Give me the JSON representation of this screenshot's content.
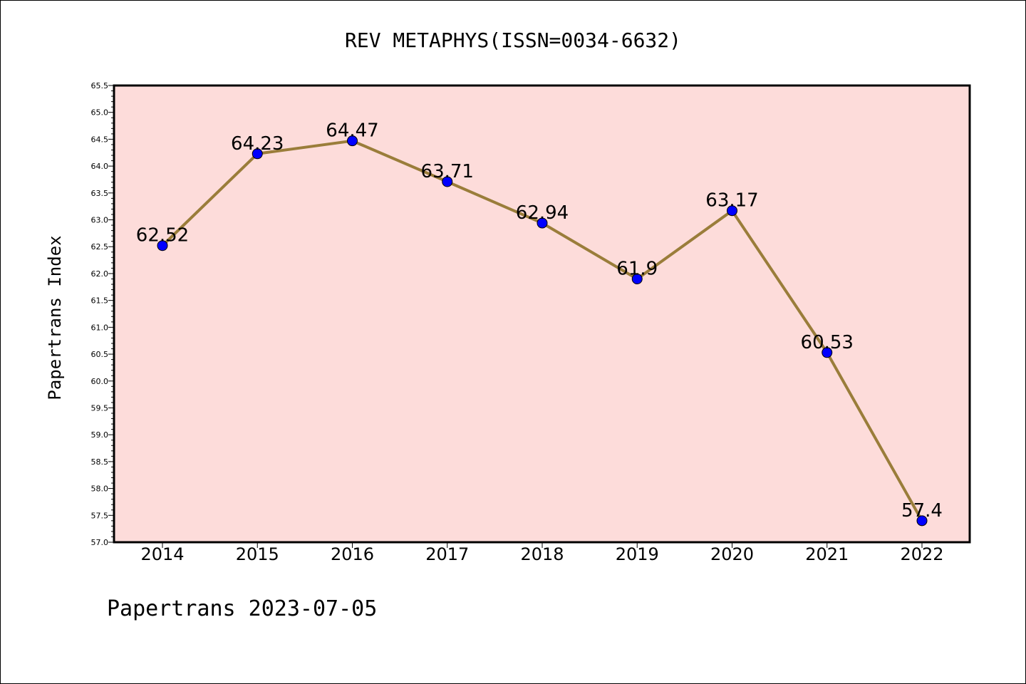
{
  "chart_data": {
    "type": "line",
    "title": "REV METAPHYS(ISSN=0034-6632)",
    "xlabel": "",
    "ylabel": "Papertrans Index",
    "categories": [
      "2014",
      "2015",
      "2016",
      "2017",
      "2018",
      "2019",
      "2020",
      "2021",
      "2022"
    ],
    "values": [
      62.52,
      64.23,
      64.47,
      63.71,
      62.94,
      61.9,
      63.17,
      60.53,
      57.4
    ],
    "data_labels": [
      "62.52",
      "64.23",
      "64.47",
      "63.71",
      "62.94",
      "61.9",
      "63.17",
      "60.53",
      "57.4"
    ],
    "ylim": [
      57.0,
      65.5
    ],
    "yticks": [
      "57.0",
      "57.5",
      "58.0",
      "58.5",
      "59.0",
      "59.5",
      "60.0",
      "60.5",
      "61.0",
      "61.5",
      "62.0",
      "62.5",
      "63.0",
      "63.5",
      "64.0",
      "64.5",
      "65.0",
      "65.5"
    ],
    "grid": false,
    "legend": "none",
    "colors": {
      "plot_background": "#FDDCDA",
      "line": "#9A7D3A",
      "marker": "#0000FF"
    }
  },
  "footer": "Papertrans 2023-07-05"
}
